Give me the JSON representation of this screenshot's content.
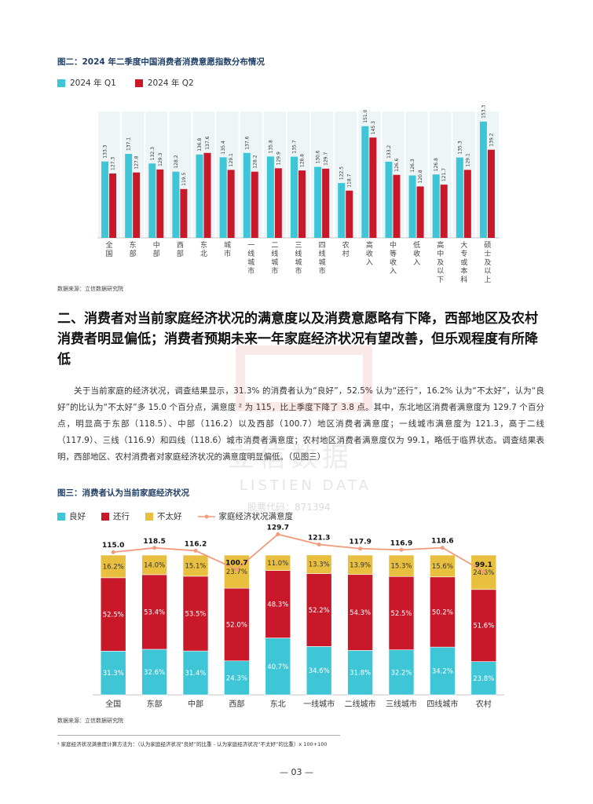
{
  "fig2": {
    "title": "图二：2024 年二季度中国消费者消费意愿指数分布情况",
    "legend_q1": "2024 年 Q1",
    "legend_q2": "2024 年 Q2",
    "source": "数据来源：立信数据研究院",
    "colors": {
      "q1": "#3ec6d6",
      "q2": "#c8182a"
    }
  },
  "chart_data": [
    {
      "type": "bar",
      "title": "图二：2024 年二季度中国消费者消费意愿指数分布情况",
      "categories": [
        "全国",
        "东部",
        "中部",
        "西部",
        "东北",
        "城市",
        "一线城市",
        "二线城市",
        "三线城市",
        "四线城市",
        "农村",
        "高收入",
        "中等收入",
        "低收入",
        "高中及以下",
        "大专或本科",
        "硕士及以上"
      ],
      "series": [
        {
          "name": "2024 年 Q1",
          "values": [
            133.3,
            137.1,
            132.3,
            128.2,
            136.8,
            135.4,
            137.6,
            135.8,
            135.7,
            130.6,
            122.5,
            151.0,
            133.2,
            126.3,
            126.8,
            135.3,
            153.3
          ]
        },
        {
          "name": "2024 年 Q2",
          "values": [
            127.3,
            127.8,
            129.3,
            119.5,
            137.6,
            129.1,
            128.2,
            129.9,
            128.8,
            129.7,
            118.7,
            145.3,
            126.6,
            120.8,
            121.7,
            129.1,
            139.2
          ]
        }
      ],
      "ylim": [
        95,
        156
      ]
    },
    {
      "type": "bar",
      "title": "图三：消费者认为当前家庭经济状况",
      "categories": [
        "全国",
        "东部",
        "中部",
        "西部",
        "东北",
        "一线城市",
        "二线城市",
        "三线城市",
        "四线城市",
        "农村"
      ],
      "series": [
        {
          "name": "良好",
          "values": [
            31.3,
            32.6,
            31.4,
            24.3,
            40.7,
            34.6,
            31.8,
            32.2,
            34.2,
            23.8
          ]
        },
        {
          "name": "还行",
          "values": [
            52.5,
            53.4,
            53.5,
            52.0,
            48.3,
            52.2,
            54.3,
            52.5,
            50.2,
            51.6
          ]
        },
        {
          "name": "不太好",
          "values": [
            16.2,
            14.0,
            15.1,
            23.7,
            11.0,
            13.3,
            13.9,
            15.3,
            15.6,
            24.6
          ]
        },
        {
          "name": "家庭经济状况满意度",
          "values": [
            115.0,
            118.5,
            116.2,
            100.7,
            129.7,
            121.3,
            117.9,
            116.9,
            118.6,
            99.1
          ]
        }
      ]
    }
  ],
  "section": {
    "heading": "二、消费者对当前家庭经济状况的满意度以及消费意愿略有下降，西部地区及农村消费者明显偏低；消费者预期未来一年家庭经济状况有望改善，但乐观程度有所降低",
    "paragraph": "关于当前家庭的经济状况，调查结果显示，31.3% 的消费者认为“良好”，52.5% 认为“还行”，16.2% 认为“不太好”，认为“良好”的比认为“不太好”多 15.0 个百分点，满意度 ² 为 115，比上季度下降了 3.8 点。其中，东北地区消费者满意度为 129.7 个百分点，明显高于东部（118.5）、中部（116.2）以及西部（100.7）地区消费者满意度；一线城市满意度为 121.3，高于二线（117.9）、三线（116.9）和四线（118.6）城市消费者满意度；农村地区消费者满意度仅为 99.1，略低于临界状态。调查结果表明，西部地区、农村消费者对家庭经济状况的满意度明显偏低。（见图三）"
  },
  "fig3": {
    "title": "图三：消费者认为当前家庭经济状况",
    "legend": [
      "良好",
      "还行",
      "不太好",
      "家庭经济状况满意度"
    ],
    "source": "数据来源：立信数据研究院",
    "colors": {
      "good": "#3ec6d6",
      "ok": "#c8182a",
      "bad": "#e8bf3e",
      "line": "#f29a7a"
    }
  },
  "footnote": "² 家庭经济状况满意度计算方法为：（认为家庭经济状况“良好”的比重 - 认为家庭经济状况“不太好”的比重）x 100+100",
  "page_number": "— 03 —",
  "watermark": {
    "name": "立信数据",
    "en": "LISTIEN DATA",
    "code": "股票代码：871394"
  }
}
